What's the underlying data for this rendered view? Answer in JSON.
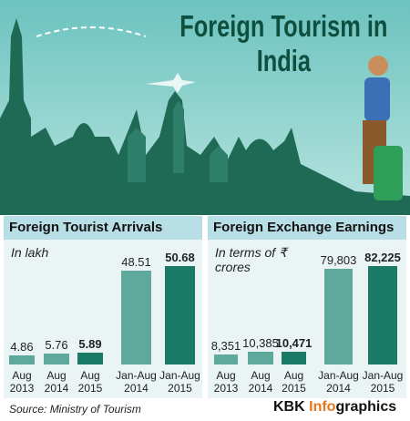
{
  "title": "Foreign Tourism in India",
  "source": "Source: Ministry of Tourism",
  "brand": [
    "KBK",
    "Info",
    "graphics"
  ],
  "chart_data": [
    {
      "type": "bar",
      "title": "Foreign Tourist Arrivals",
      "subtitle": "In lakh",
      "categories": [
        "Aug 2013",
        "Aug 2014",
        "Aug 2015",
        "Jan-Aug 2014",
        "Jan-Aug 2015"
      ],
      "values": [
        4.86,
        5.76,
        5.89,
        48.51,
        50.68
      ],
      "colors": [
        "#5fa89c",
        "#5fa89c",
        "#1b7a66",
        "#5fa89c",
        "#1b7a66"
      ]
    },
    {
      "type": "bar",
      "title": "Foreign Exchange Earnings",
      "subtitle": "In terms of ₹ crores",
      "categories": [
        "Aug 2013",
        "Aug 2014",
        "Aug 2015",
        "Jan-Aug 2014",
        "Jan-Aug 2015"
      ],
      "values": [
        8351,
        10385,
        10471,
        79803,
        82225
      ],
      "value_labels": [
        "8,351",
        "10,385",
        "10,471",
        "79,803",
        "82,225"
      ],
      "colors": [
        "#5fa89c",
        "#5fa89c",
        "#1b7a66",
        "#5fa89c",
        "#1b7a66"
      ]
    }
  ]
}
